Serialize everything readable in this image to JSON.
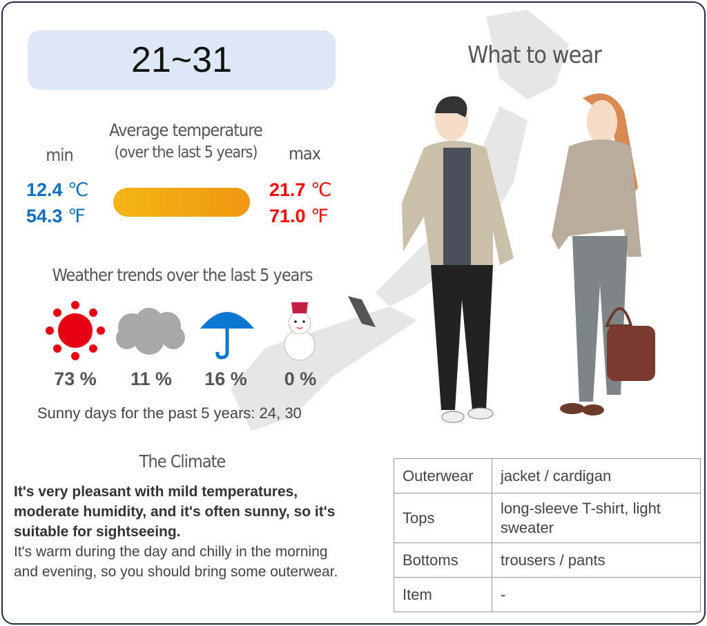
{
  "range": "21~31",
  "avg_title": "Average temperature",
  "avg_subtitle": "(over the last 5 years)",
  "min": {
    "label": "min",
    "c": "12.4",
    "f": "54.3",
    "color": "#0a6fc2"
  },
  "max": {
    "label": "max",
    "c": "21.7",
    "f": "71.0",
    "color": "#ff0000"
  },
  "unit_c": "℃",
  "unit_f": "℉",
  "trends_title": "Weather trends over the last 5 years",
  "trends": [
    {
      "icon": "sun-icon",
      "pct": "73 %"
    },
    {
      "icon": "cloud-icon",
      "pct": "11 %"
    },
    {
      "icon": "umbrella-icon",
      "pct": "16 %"
    },
    {
      "icon": "snowman-icon",
      "pct": "0 %"
    }
  ],
  "sunny_days": "Sunny days for the past 5 years: 24, 30",
  "climate_title": "The Climate",
  "climate_bold": "It's very pleasant with mild temperatures, moderate humidity, and it's often sunny, so it's suitable for sightseeing.",
  "climate_text": "It's warm during the day and chilly in the morning and evening, so you should bring some outerwear.",
  "wear_title": "What to wear",
  "wear": [
    {
      "k": "Outerwear",
      "v": "jacket / cardigan"
    },
    {
      "k": "Tops",
      "v": "long-sleeve T-shirt, light sweater"
    },
    {
      "k": "Bottoms",
      "v": "trousers / pants"
    },
    {
      "k": "Item",
      "v": "-"
    }
  ]
}
